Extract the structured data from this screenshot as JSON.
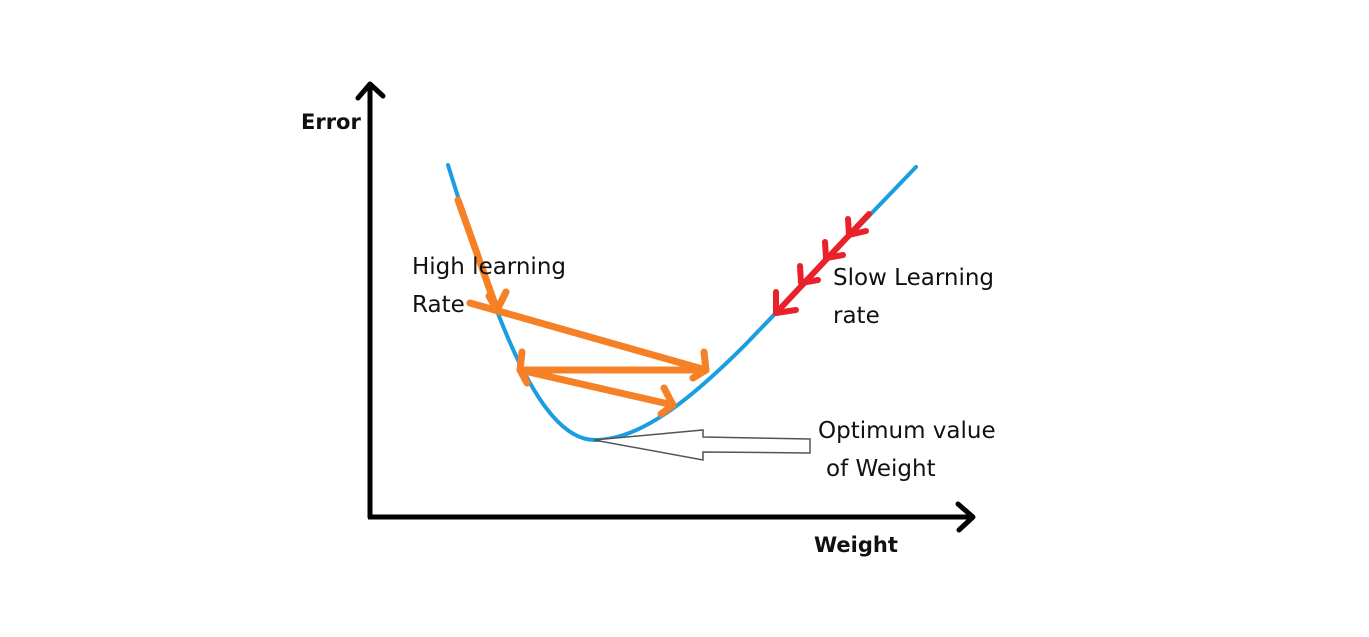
{
  "axes": {
    "y_label": "Error",
    "x_label": "Weight"
  },
  "annotations": {
    "high_lr_line1": "High learning",
    "high_lr_line2": "Rate",
    "slow_lr_line1": "Slow Learning",
    "slow_lr_line2": "rate",
    "optimum_line1": "Optimum value",
    "optimum_line2": "of Weight"
  },
  "colors": {
    "axis": "#000000",
    "curve": "#1a9ee0",
    "high_learning_rate": "#f58025",
    "slow_learning_rate": "#e8212a",
    "pointer_outline": "#555555"
  }
}
